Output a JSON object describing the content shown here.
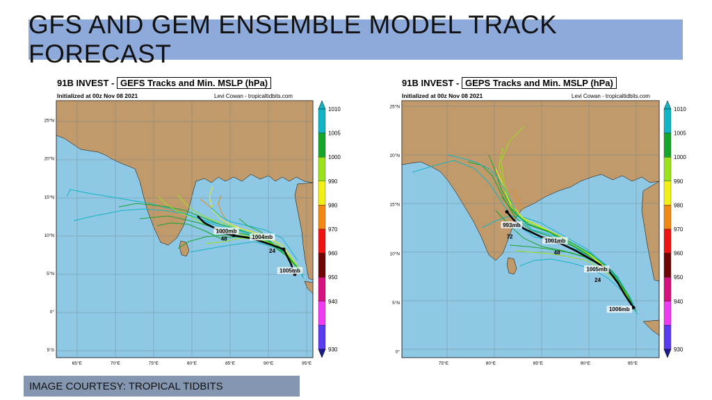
{
  "title": "GFS AND GEM ENSEMBLE MODEL TRACK FORECAST",
  "courtesy": "IMAGE COURTESY: TROPICAL TIDBITS",
  "panels": [
    {
      "storm": "91B INVEST -",
      "product": "GEFS Tracks and Min. MSLP (hPa)",
      "init": "Initialized at 00z Nov 08 2021",
      "credit": "Levi Cowan - tropicaltidbits.com",
      "lon_labels": [
        "65°E",
        "70°E",
        "75°E",
        "80°E",
        "85°E",
        "90°E",
        "95°E"
      ],
      "lat_labels": [
        "25°N",
        "20°N",
        "15°N",
        "10°N",
        "5°N",
        "0°",
        "5°S"
      ],
      "points": [
        {
          "label": "1000mb",
          "lon": 84.5,
          "lat": 10.4
        },
        {
          "label": "48",
          "lon": 84.2,
          "lat": 9.4
        },
        {
          "label": "1004mb",
          "lon": 89.2,
          "lat": 9.6
        },
        {
          "label": "24",
          "lon": 90.5,
          "lat": 7.8
        },
        {
          "label": "1005mb",
          "lon": 92.8,
          "lat": 5.2
        }
      ]
    },
    {
      "storm": "91B INVEST -",
      "product": "GEPS Tracks and Min. MSLP (hPa)",
      "init": "Initialized at 00z Nov 08 2021",
      "credit": "Levi Cowan - tropicaltidbits.com",
      "lon_labels": [
        "75°E",
        "80°E",
        "85°E",
        "90°E",
        "95°E"
      ],
      "lat_labels": [
        "25°N",
        "20°N",
        "15°N",
        "10°N",
        "5°N",
        "0°"
      ],
      "points": [
        {
          "label": "993mb",
          "lon": 82.2,
          "lat": 12.8
        },
        {
          "label": "72",
          "lon": 82.0,
          "lat": 11.6
        },
        {
          "label": "1001mb",
          "lon": 86.8,
          "lat": 11.2
        },
        {
          "label": "48",
          "lon": 87.0,
          "lat": 10.0
        },
        {
          "label": "1005mb",
          "lon": 91.2,
          "lat": 8.3
        },
        {
          "label": "24",
          "lon": 91.3,
          "lat": 7.2
        },
        {
          "label": "1006mb",
          "lon": 93.6,
          "lat": 4.2
        }
      ]
    }
  ],
  "colorbar": {
    "labels": [
      "1010",
      "1005",
      "1000",
      "990",
      "980",
      "970",
      "960",
      "950",
      "940",
      "930"
    ],
    "colors": [
      "#10b4c4",
      "#14a52a",
      "#9be21c",
      "#f0f016",
      "#f08a14",
      "#ee1414",
      "#6e0606",
      "#d6127e",
      "#f03cf0",
      "#5a3cf0"
    ]
  }
}
